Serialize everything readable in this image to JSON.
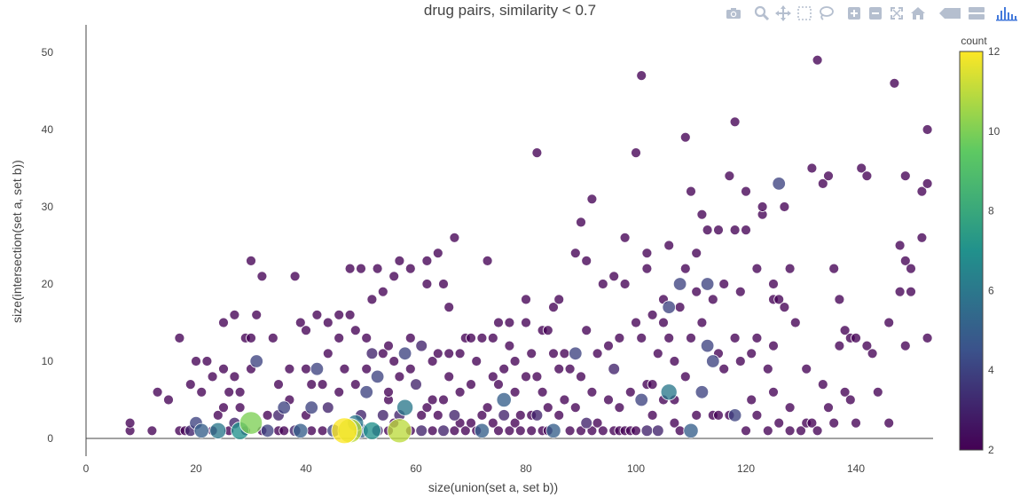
{
  "chart_data": {
    "type": "scatter",
    "title": "drug pairs, similarity < 0.7",
    "xlabel": "size(union(set a, set b))",
    "ylabel": "size(intersection(set a, set b))",
    "xlim": [
      -2,
      154
    ],
    "ylim": [
      -1.5,
      54
    ],
    "xticks": [
      0,
      20,
      40,
      60,
      80,
      100,
      120,
      140
    ],
    "yticks": [
      0,
      10,
      20,
      30,
      40,
      50
    ],
    "colorbar": {
      "title": "count",
      "min": 2,
      "max": 12,
      "ticks": [
        2,
        4,
        6,
        8,
        10,
        12
      ],
      "colorscale": [
        "#440154",
        "#3b528b",
        "#21918c",
        "#5ec962",
        "#fde725"
      ]
    },
    "points": [
      [
        8,
        1,
        2
      ],
      [
        8,
        2,
        2
      ],
      [
        12,
        1,
        2
      ],
      [
        13,
        6,
        2
      ],
      [
        15,
        5,
        2
      ],
      [
        17,
        1,
        2
      ],
      [
        17,
        13,
        2
      ],
      [
        18,
        1,
        2
      ],
      [
        19,
        1,
        3
      ],
      [
        20,
        2,
        4
      ],
      [
        19,
        7,
        2
      ],
      [
        20,
        10,
        2
      ],
      [
        21,
        1,
        5
      ],
      [
        21,
        6,
        2
      ],
      [
        22,
        10,
        2
      ],
      [
        23,
        1,
        2
      ],
      [
        23,
        8,
        2
      ],
      [
        24,
        1,
        6
      ],
      [
        24,
        3,
        2
      ],
      [
        25,
        4,
        2
      ],
      [
        25,
        9,
        2
      ],
      [
        25,
        15,
        2
      ],
      [
        26,
        6,
        2
      ],
      [
        26,
        1,
        2
      ],
      [
        27,
        16,
        2
      ],
      [
        27,
        2,
        3
      ],
      [
        27,
        8,
        2
      ],
      [
        28,
        1,
        7
      ],
      [
        28,
        4,
        2
      ],
      [
        28,
        6,
        2
      ],
      [
        29,
        1,
        2
      ],
      [
        29,
        13,
        2
      ],
      [
        30,
        2,
        10
      ],
      [
        30,
        9,
        2
      ],
      [
        30,
        13,
        2
      ],
      [
        30,
        23,
        2
      ],
      [
        31,
        10,
        4
      ],
      [
        31,
        16,
        2
      ],
      [
        32,
        21,
        2
      ],
      [
        32,
        1,
        2
      ],
      [
        33,
        1,
        4
      ],
      [
        33,
        3,
        2
      ],
      [
        34,
        13,
        2
      ],
      [
        35,
        1,
        2
      ],
      [
        35,
        3,
        3
      ],
      [
        35,
        7,
        2
      ],
      [
        36,
        4,
        4
      ],
      [
        36,
        1,
        2
      ],
      [
        37,
        9,
        2
      ],
      [
        37,
        5,
        2
      ],
      [
        38,
        1,
        3
      ],
      [
        38,
        21,
        2
      ],
      [
        39,
        1,
        5
      ],
      [
        39,
        15,
        2
      ],
      [
        40,
        3,
        2
      ],
      [
        40,
        9,
        2
      ],
      [
        40,
        14,
        2
      ],
      [
        41,
        1,
        2
      ],
      [
        41,
        4,
        4
      ],
      [
        41,
        7,
        2
      ],
      [
        42,
        9,
        4
      ],
      [
        42,
        16,
        2
      ],
      [
        43,
        1,
        2
      ],
      [
        43,
        7,
        2
      ],
      [
        44,
        11,
        2
      ],
      [
        44,
        15,
        2
      ],
      [
        44,
        4,
        3
      ],
      [
        45,
        1,
        4
      ],
      [
        46,
        13,
        2
      ],
      [
        46,
        16,
        2
      ],
      [
        46,
        6,
        2
      ],
      [
        47,
        1,
        12
      ],
      [
        47,
        9,
        2
      ],
      [
        48,
        1,
        11
      ],
      [
        48,
        16,
        2
      ],
      [
        48,
        22,
        2
      ],
      [
        49,
        2,
        6
      ],
      [
        49,
        7,
        2
      ],
      [
        49,
        14,
        2
      ],
      [
        50,
        1,
        5
      ],
      [
        50,
        3,
        3
      ],
      [
        50,
        22,
        2
      ],
      [
        51,
        6,
        4
      ],
      [
        51,
        9,
        2
      ],
      [
        51,
        13,
        2
      ],
      [
        52,
        1,
        7
      ],
      [
        52,
        11,
        3
      ],
      [
        52,
        18,
        2
      ],
      [
        53,
        1,
        3
      ],
      [
        53,
        8,
        4
      ],
      [
        53,
        22,
        2
      ],
      [
        54,
        3,
        3
      ],
      [
        54,
        11,
        2
      ],
      [
        54,
        19,
        2
      ],
      [
        55,
        1,
        2
      ],
      [
        55,
        5,
        2
      ],
      [
        55,
        6,
        2
      ],
      [
        55,
        12,
        2
      ],
      [
        56,
        2,
        2
      ],
      [
        56,
        10,
        2
      ],
      [
        56,
        21,
        2
      ],
      [
        57,
        1,
        11
      ],
      [
        57,
        3,
        3
      ],
      [
        57,
        8,
        2
      ],
      [
        57,
        23,
        2
      ],
      [
        58,
        4,
        6
      ],
      [
        58,
        11,
        4
      ],
      [
        59,
        1,
        2
      ],
      [
        59,
        9,
        2
      ],
      [
        59,
        13,
        2
      ],
      [
        59,
        22,
        2
      ],
      [
        60,
        7,
        3
      ],
      [
        61,
        3,
        2
      ],
      [
        61,
        1,
        3
      ],
      [
        61,
        12,
        3
      ],
      [
        62,
        4,
        2
      ],
      [
        62,
        20,
        2
      ],
      [
        62,
        23,
        2
      ],
      [
        63,
        1,
        2
      ],
      [
        63,
        5,
        2
      ],
      [
        63,
        10,
        2
      ],
      [
        64,
        3,
        2
      ],
      [
        64,
        11,
        2
      ],
      [
        64,
        24,
        2
      ],
      [
        65,
        1,
        3
      ],
      [
        65,
        5,
        2
      ],
      [
        65,
        20,
        2
      ],
      [
        66,
        8,
        2
      ],
      [
        66,
        11,
        2
      ],
      [
        66,
        17,
        2
      ],
      [
        67,
        1,
        2
      ],
      [
        67,
        3,
        3
      ],
      [
        67,
        26,
        2
      ],
      [
        68,
        2,
        2
      ],
      [
        68,
        6,
        2
      ],
      [
        68,
        11,
        2
      ],
      [
        69,
        1,
        2
      ],
      [
        69,
        13,
        2
      ],
      [
        70,
        2,
        2
      ],
      [
        70,
        7,
        2
      ],
      [
        70,
        13,
        2
      ],
      [
        71,
        1,
        2
      ],
      [
        71,
        10,
        2
      ],
      [
        72,
        1,
        5
      ],
      [
        72,
        3,
        2
      ],
      [
        72,
        13,
        2
      ],
      [
        73,
        4,
        2
      ],
      [
        73,
        23,
        2
      ],
      [
        74,
        2,
        2
      ],
      [
        74,
        8,
        2
      ],
      [
        74,
        13,
        2
      ],
      [
        75,
        1,
        2
      ],
      [
        75,
        7,
        2
      ],
      [
        75,
        15,
        2
      ],
      [
        76,
        3,
        3
      ],
      [
        76,
        5,
        5
      ],
      [
        76,
        9,
        2
      ],
      [
        77,
        1,
        2
      ],
      [
        77,
        12,
        2
      ],
      [
        77,
        15,
        2
      ],
      [
        78,
        2,
        2
      ],
      [
        78,
        6,
        2
      ],
      [
        78,
        10,
        2
      ],
      [
        79,
        1,
        2
      ],
      [
        79,
        3,
        2
      ],
      [
        80,
        8,
        2
      ],
      [
        80,
        15,
        2
      ],
      [
        80,
        18,
        2
      ],
      [
        81,
        1,
        2
      ],
      [
        81,
        3,
        2
      ],
      [
        81,
        11,
        2
      ],
      [
        82,
        3,
        3
      ],
      [
        82,
        8,
        2
      ],
      [
        82,
        37,
        2
      ],
      [
        83,
        1,
        2
      ],
      [
        83,
        6,
        2
      ],
      [
        83,
        14,
        2
      ],
      [
        84,
        1,
        2
      ],
      [
        84,
        4,
        2
      ],
      [
        84,
        14,
        2
      ],
      [
        85,
        1,
        5
      ],
      [
        85,
        11,
        2
      ],
      [
        85,
        17,
        2
      ],
      [
        86,
        3,
        2
      ],
      [
        86,
        9,
        2
      ],
      [
        86,
        18,
        2
      ],
      [
        87,
        5,
        2
      ],
      [
        87,
        11,
        2
      ],
      [
        88,
        1,
        2
      ],
      [
        88,
        9,
        2
      ],
      [
        89,
        4,
        2
      ],
      [
        89,
        11,
        4
      ],
      [
        89,
        24,
        2
      ],
      [
        90,
        1,
        2
      ],
      [
        90,
        8,
        2
      ],
      [
        90,
        28,
        2
      ],
      [
        91,
        2,
        3
      ],
      [
        91,
        14,
        2
      ],
      [
        91,
        23,
        2
      ],
      [
        92,
        1,
        2
      ],
      [
        92,
        6,
        2
      ],
      [
        92,
        31,
        2
      ],
      [
        93,
        2,
        2
      ],
      [
        93,
        11,
        2
      ],
      [
        94,
        1,
        2
      ],
      [
        94,
        20,
        2
      ],
      [
        95,
        5,
        2
      ],
      [
        95,
        12,
        2
      ],
      [
        96,
        1,
        2
      ],
      [
        96,
        9,
        3
      ],
      [
        96,
        21,
        2
      ],
      [
        97,
        1,
        2
      ],
      [
        97,
        4,
        2
      ],
      [
        97,
        13,
        2
      ],
      [
        98,
        1,
        2
      ],
      [
        98,
        20,
        2
      ],
      [
        98,
        26,
        2
      ],
      [
        99,
        1,
        2
      ],
      [
        99,
        6,
        2
      ],
      [
        100,
        1,
        2
      ],
      [
        100,
        15,
        2
      ],
      [
        100,
        37,
        2
      ],
      [
        101,
        5,
        4
      ],
      [
        101,
        13,
        2
      ],
      [
        101,
        47,
        2
      ],
      [
        102,
        1,
        3
      ],
      [
        102,
        7,
        2
      ],
      [
        102,
        22,
        2
      ],
      [
        102,
        24,
        2
      ],
      [
        103,
        3,
        2
      ],
      [
        103,
        7,
        2
      ],
      [
        103,
        16,
        2
      ],
      [
        104,
        1,
        3
      ],
      [
        104,
        11,
        2
      ],
      [
        105,
        5,
        2
      ],
      [
        105,
        15,
        2
      ],
      [
        105,
        18,
        2
      ],
      [
        106,
        6,
        6
      ],
      [
        106,
        13,
        2
      ],
      [
        106,
        25,
        2
      ],
      [
        106,
        17,
        4
      ],
      [
        107,
        2,
        2
      ],
      [
        107,
        5,
        2
      ],
      [
        107,
        10,
        2
      ],
      [
        108,
        1,
        2
      ],
      [
        108,
        20,
        4
      ],
      [
        108,
        17,
        2
      ],
      [
        109,
        8,
        2
      ],
      [
        109,
        22,
        2
      ],
      [
        109,
        39,
        2
      ],
      [
        110,
        1,
        5
      ],
      [
        110,
        13,
        2
      ],
      [
        110,
        32,
        2
      ],
      [
        111,
        3,
        2
      ],
      [
        111,
        24,
        2
      ],
      [
        111,
        19,
        2
      ],
      [
        112,
        6,
        4
      ],
      [
        112,
        15,
        2
      ],
      [
        112,
        29,
        2
      ],
      [
        113,
        12,
        4
      ],
      [
        113,
        20,
        4
      ],
      [
        113,
        27,
        2
      ],
      [
        114,
        3,
        2
      ],
      [
        114,
        10,
        4
      ],
      [
        114,
        18,
        2
      ],
      [
        115,
        3,
        2
      ],
      [
        115,
        11,
        2
      ],
      [
        115,
        27,
        2
      ],
      [
        116,
        9,
        2
      ],
      [
        116,
        20,
        2
      ],
      [
        117,
        3,
        2
      ],
      [
        117,
        34,
        2
      ],
      [
        118,
        3,
        4
      ],
      [
        118,
        13,
        2
      ],
      [
        118,
        27,
        2
      ],
      [
        118,
        41,
        2
      ],
      [
        119,
        10,
        2
      ],
      [
        119,
        19,
        2
      ],
      [
        120,
        1,
        2
      ],
      [
        120,
        32,
        2
      ],
      [
        120,
        27,
        2
      ],
      [
        121,
        5,
        2
      ],
      [
        121,
        11,
        2
      ],
      [
        122,
        3,
        2
      ],
      [
        122,
        13,
        2
      ],
      [
        122,
        22,
        2
      ],
      [
        123,
        29,
        2
      ],
      [
        123,
        30,
        2
      ],
      [
        124,
        1,
        2
      ],
      [
        124,
        9,
        2
      ],
      [
        125,
        6,
        2
      ],
      [
        125,
        12,
        2
      ],
      [
        125,
        18,
        2
      ],
      [
        125,
        20,
        2
      ],
      [
        126,
        2,
        2
      ],
      [
        126,
        18,
        2
      ],
      [
        126,
        33,
        4
      ],
      [
        127,
        17,
        2
      ],
      [
        127,
        30,
        2
      ],
      [
        128,
        1,
        2
      ],
      [
        128,
        4,
        2
      ],
      [
        128,
        22,
        2
      ],
      [
        129,
        15,
        2
      ],
      [
        130,
        1,
        2
      ],
      [
        131,
        2,
        2
      ],
      [
        131,
        9,
        2
      ],
      [
        132,
        35,
        2
      ],
      [
        132,
        2,
        2
      ],
      [
        133,
        1,
        2
      ],
      [
        133,
        49,
        2
      ],
      [
        134,
        7,
        2
      ],
      [
        134,
        33,
        2
      ],
      [
        135,
        4,
        2
      ],
      [
        135,
        34,
        2
      ],
      [
        136,
        2,
        2
      ],
      [
        136,
        22,
        2
      ],
      [
        137,
        18,
        2
      ],
      [
        137,
        12,
        2
      ],
      [
        138,
        6,
        2
      ],
      [
        138,
        14,
        2
      ],
      [
        139,
        5,
        2
      ],
      [
        139,
        13,
        2
      ],
      [
        140,
        2,
        2
      ],
      [
        140,
        13,
        2
      ],
      [
        141,
        35,
        2
      ],
      [
        142,
        12,
        2
      ],
      [
        142,
        34,
        2
      ],
      [
        143,
        11,
        2
      ],
      [
        144,
        6,
        2
      ],
      [
        146,
        2,
        2
      ],
      [
        146,
        15,
        2
      ],
      [
        147,
        46,
        2
      ],
      [
        148,
        19,
        2
      ],
      [
        148,
        25,
        2
      ],
      [
        149,
        12,
        2
      ],
      [
        149,
        23,
        2
      ],
      [
        149,
        34,
        2
      ],
      [
        150,
        19,
        2
      ],
      [
        150,
        22,
        2
      ],
      [
        152,
        26,
        2
      ],
      [
        152,
        32,
        2
      ],
      [
        153,
        13,
        2
      ],
      [
        153,
        33,
        2
      ],
      [
        153,
        40,
        2
      ]
    ]
  },
  "modebar": {
    "buttons": [
      {
        "name": "download-plot-button",
        "icon": "camera-icon"
      },
      {
        "name": "zoom-button",
        "icon": "zoom-icon"
      },
      {
        "name": "pan-button",
        "icon": "pan-icon"
      },
      {
        "name": "box-select-button",
        "icon": "box-select-icon"
      },
      {
        "name": "lasso-select-button",
        "icon": "lasso-icon"
      },
      {
        "name": "zoom-in-button",
        "icon": "zoom-in-icon"
      },
      {
        "name": "zoom-out-button",
        "icon": "zoom-out-icon"
      },
      {
        "name": "autoscale-button",
        "icon": "autoscale-icon"
      },
      {
        "name": "reset-axes-button",
        "icon": "home-icon"
      },
      {
        "name": "hover-closest-button",
        "icon": "hover-closest-icon"
      },
      {
        "name": "hover-compare-button",
        "icon": "hover-compare-icon"
      },
      {
        "name": "plotly-logo-link",
        "icon": "plotly-logo-icon"
      }
    ]
  }
}
